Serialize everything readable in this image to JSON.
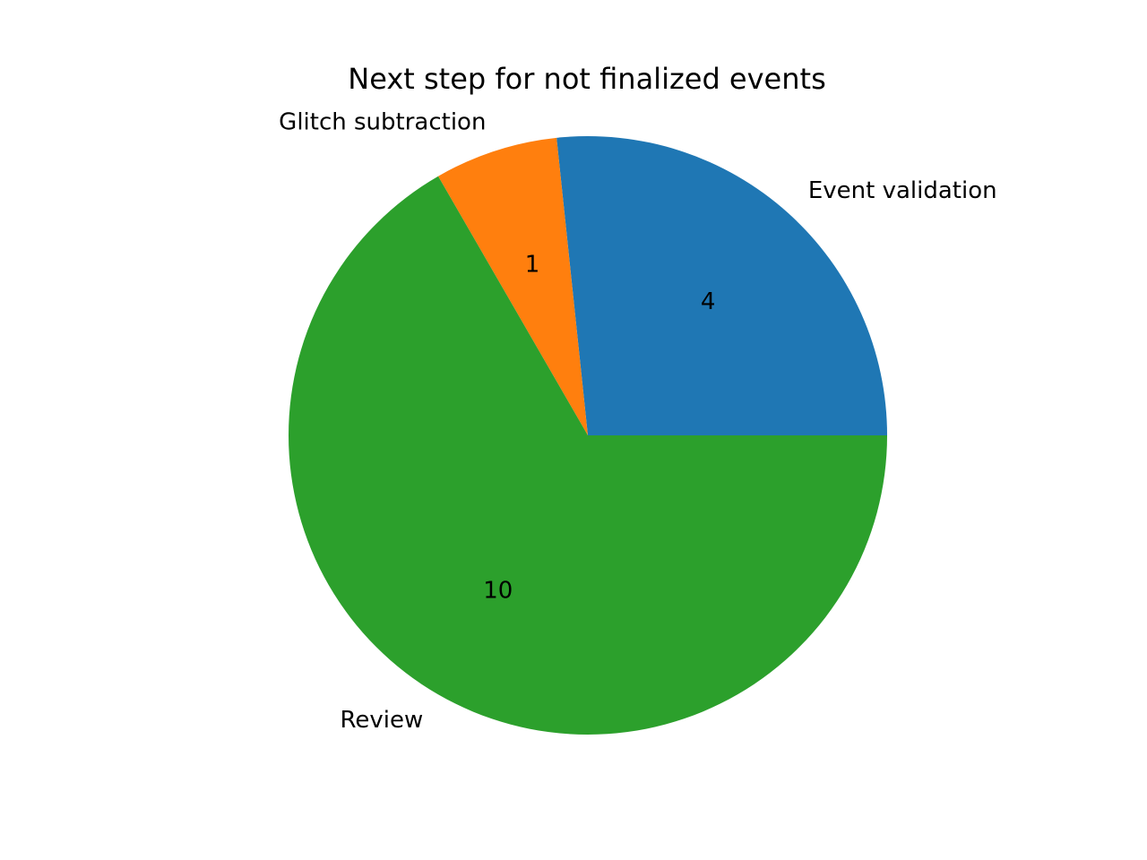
{
  "chart_data": {
    "type": "pie",
    "title": "Next step for not finalized events",
    "categories": [
      "Event validation",
      "Glitch subtraction",
      "Review"
    ],
    "values": [
      4,
      1,
      10
    ],
    "colors": [
      "#1f77b4",
      "#ff7f0e",
      "#2ca02c"
    ],
    "start_angle_degrees": 0,
    "direction": "counterclockwise",
    "value_labels_shown": true,
    "legend": "none"
  }
}
